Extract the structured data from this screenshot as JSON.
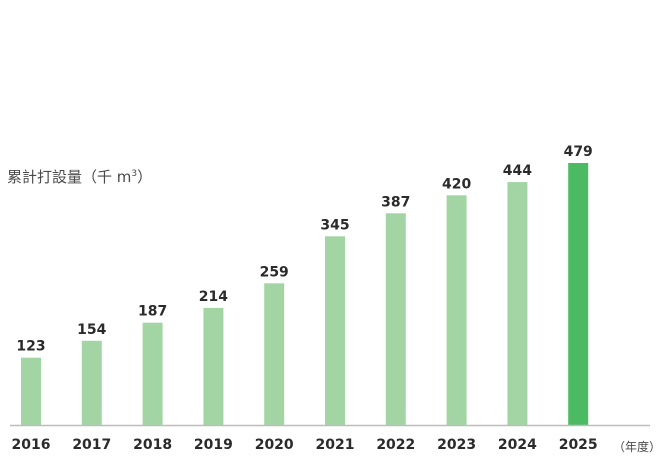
{
  "chart_data": {
    "type": "bar",
    "ylabel": "累計打設量（千 m",
    "ylabel_sup": "3",
    "ylabel_close": "）",
    "xlabel": "（年度）",
    "categories": [
      "2016",
      "2017",
      "2018",
      "2019",
      "2020",
      "2021",
      "2022",
      "2023",
      "2024",
      "2025"
    ],
    "values": [
      123,
      154,
      187,
      214,
      259,
      345,
      387,
      420,
      444,
      479
    ],
    "highlight_index": 9,
    "colors": {
      "bar": "#a3d5a4",
      "highlight": "#4bba63",
      "axis": "#bdbdbd"
    },
    "ylim": [
      0,
      479
    ],
    "grid": false,
    "legend": false
  }
}
